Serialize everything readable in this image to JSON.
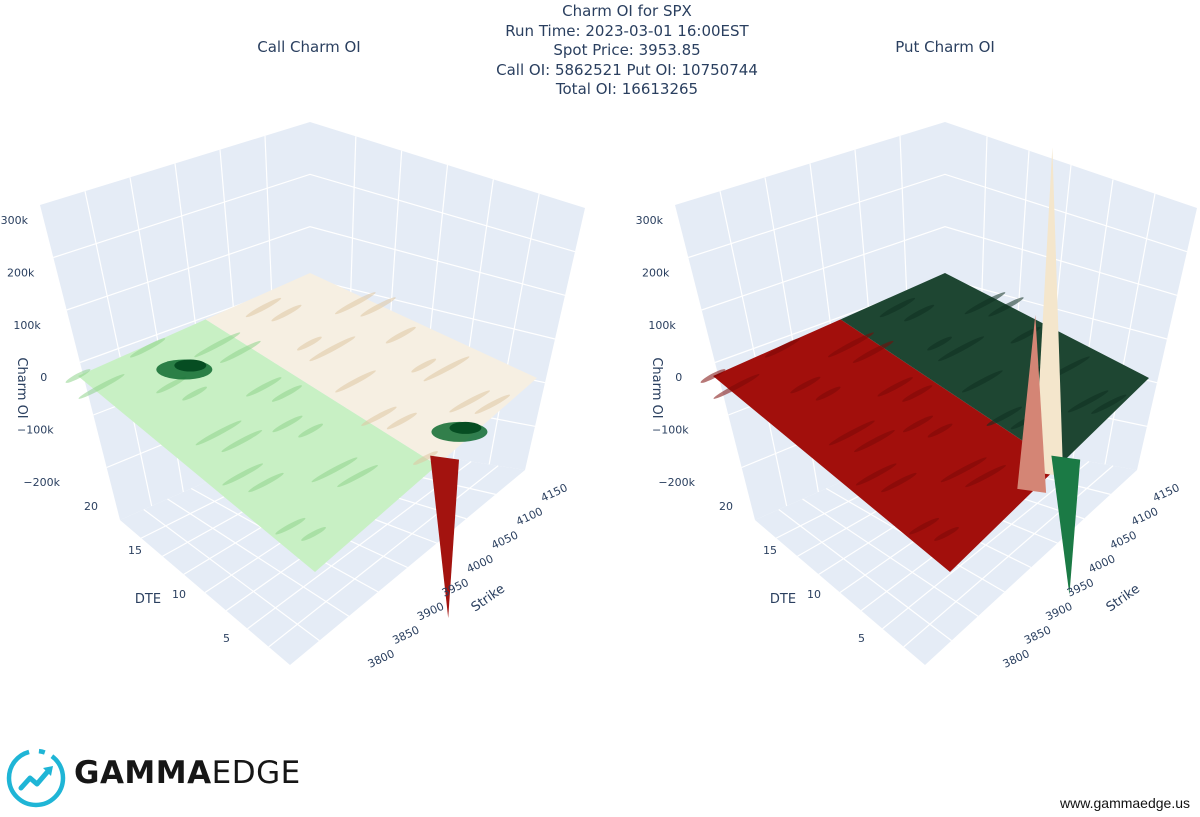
{
  "header": {
    "title_lines": [
      "Charm OI for SPX",
      "Run Time: 2023-03-01 16:00EST",
      "Spot Price: 3953.85",
      "Call OI: 5862521 Put OI: 10750744",
      "Total OI: 16613265"
    ]
  },
  "branding": {
    "logo_text_bold": "GAMMA",
    "logo_text_light": "EDGE",
    "website": "www.gammaedge.us",
    "logo_color": "#1fb5d6"
  },
  "chart_data": [
    {
      "type": "surface3d",
      "title": "Call Charm OI",
      "xlabel": "Strike",
      "ylabel": "DTE",
      "zlabel": "Charm OI",
      "x_ticks": [
        "3800",
        "3850",
        "3900",
        "3950",
        "4000",
        "4050",
        "4100",
        "4150"
      ],
      "y_ticks": [
        "5",
        "10",
        "15",
        "20"
      ],
      "z_ticks": [
        "−200k",
        "−100k",
        "0",
        "100k",
        "200k",
        "300k"
      ],
      "zlim": [
        -200000,
        300000
      ],
      "colorscale": [
        "#8a0f0c",
        "#f7edd8",
        "#d8f2d0",
        "#0a5a2a"
      ],
      "features": [
        {
          "strike": 4010,
          "dte": 1,
          "value": -140000
        },
        {
          "strike": 3910,
          "dte": 19,
          "value": 45000
        },
        {
          "strike": 4045,
          "dte": 2,
          "value": 30000
        }
      ]
    },
    {
      "type": "surface3d",
      "title": "Put Charm OI",
      "xlabel": "Strike",
      "ylabel": "DTE",
      "zlabel": "Charm OI",
      "x_ticks": [
        "3800",
        "3850",
        "3900",
        "3950",
        "4000",
        "4050",
        "4100",
        "4150"
      ],
      "y_ticks": [
        "5",
        "10",
        "15",
        "20"
      ],
      "z_ticks": [
        "−200k",
        "−100k",
        "0",
        "100k",
        "200k",
        "300k"
      ],
      "zlim": [
        -200000,
        300000
      ],
      "colorscale": [
        "#8a0f0c",
        "#f7edd8",
        "#1c4a30"
      ],
      "features": [
        {
          "strike": 3980,
          "dte": 1,
          "value": 280000
        },
        {
          "strike": 3950,
          "dte": 1,
          "value": 150000
        },
        {
          "strike": 4010,
          "dte": 1,
          "value": -120000
        }
      ]
    }
  ]
}
